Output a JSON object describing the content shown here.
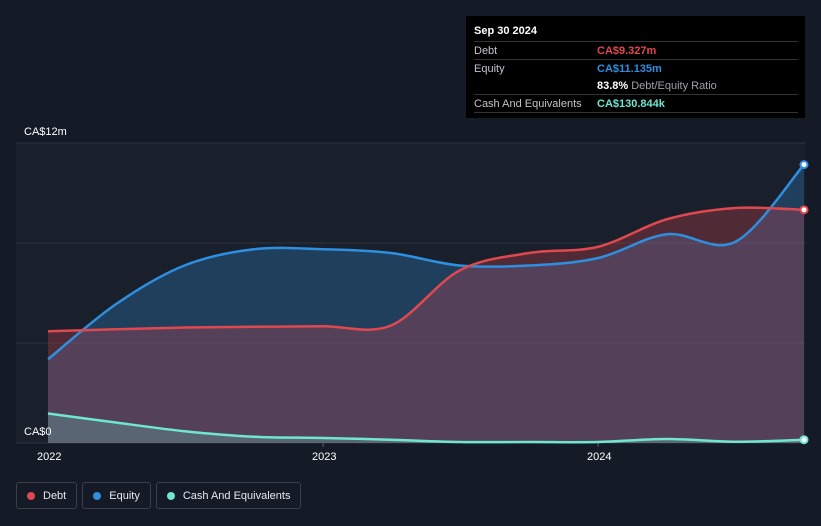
{
  "chart_data": {
    "type": "area",
    "x_ticks": [
      "2022",
      "2023",
      "2024"
    ],
    "y_ticks": [
      "CA$12m",
      "CA$0"
    ],
    "ylim": [
      0,
      12
    ],
    "grid": true,
    "x": [
      "2022-01-01",
      "2022-04-01",
      "2022-07-01",
      "2022-10-01",
      "2023-01-01",
      "2023-04-01",
      "2023-07-01",
      "2023-10-01",
      "2024-01-01",
      "2024-04-01",
      "2024-07-01",
      "2024-09-30"
    ],
    "series": [
      {
        "name": "Debt",
        "color": "#e0484f",
        "values": [
          4.47,
          4.55,
          4.62,
          4.65,
          4.67,
          4.7,
          6.9,
          7.6,
          7.85,
          8.95,
          9.4,
          9.327
        ]
      },
      {
        "name": "Equity",
        "color": "#2e8fe0",
        "values": [
          3.35,
          5.55,
          7.1,
          7.75,
          7.75,
          7.6,
          7.1,
          7.1,
          7.4,
          8.35,
          8.05,
          11.135
        ]
      },
      {
        "name": "Cash And Equivalents",
        "color": "#6ee6d0",
        "values": [
          1.18,
          0.82,
          0.47,
          0.25,
          0.2,
          0.13,
          0.04,
          0.04,
          0.04,
          0.16,
          0.05,
          0.1308
        ]
      }
    ]
  },
  "tooltip": {
    "date": "Sep 30 2024",
    "debt_label": "Debt",
    "debt_value": "CA$9.327m",
    "equity_label": "Equity",
    "equity_value": "CA$11.135m",
    "ratio_value": "83.8%",
    "ratio_label": "Debt/Equity Ratio",
    "cash_label": "Cash And Equivalents",
    "cash_value": "CA$130.844k"
  },
  "legend": [
    {
      "label": "Debt",
      "color": "#e0484f"
    },
    {
      "label": "Equity",
      "color": "#2e8fe0"
    },
    {
      "label": "Cash And Equivalents",
      "color": "#6ee6d0"
    }
  ]
}
